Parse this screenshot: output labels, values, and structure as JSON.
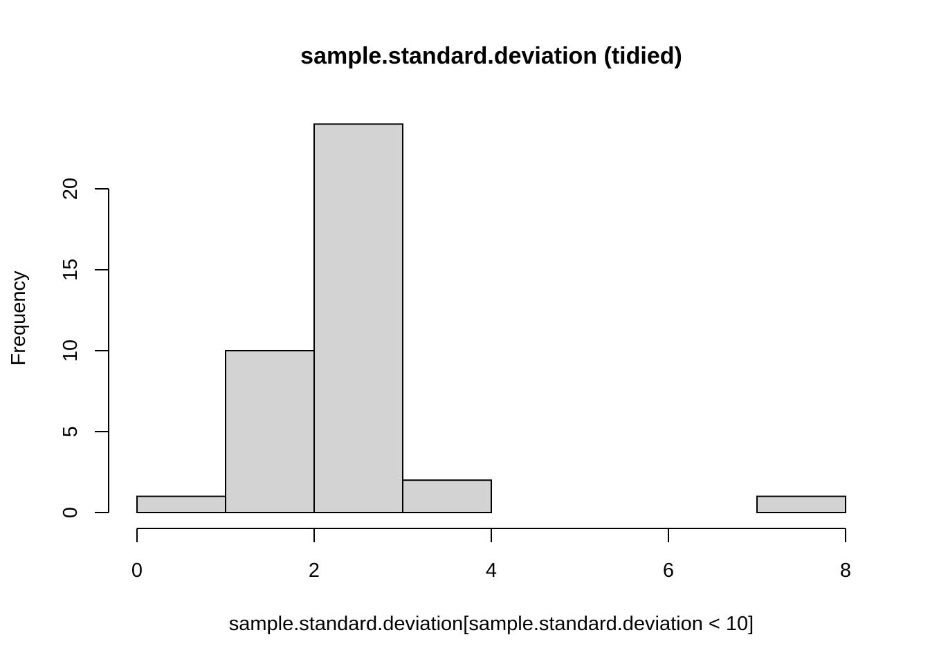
{
  "chart_data": {
    "type": "bar",
    "title": "sample.standard.deviation (tidied)",
    "xlabel": "sample.standard.deviation[sample.standard.deviation < 10]",
    "ylabel": "Frequency",
    "bins": [
      {
        "from": 0,
        "to": 1,
        "count": 1
      },
      {
        "from": 1,
        "to": 2,
        "count": 10
      },
      {
        "from": 2,
        "to": 3,
        "count": 24
      },
      {
        "from": 3,
        "to": 4,
        "count": 2
      },
      {
        "from": 4,
        "to": 5,
        "count": 0
      },
      {
        "from": 5,
        "to": 6,
        "count": 0
      },
      {
        "from": 6,
        "to": 7,
        "count": 0
      },
      {
        "from": 7,
        "to": 8,
        "count": 1
      }
    ],
    "xlim": [
      0,
      8
    ],
    "ylim": [
      0,
      24
    ],
    "x_ticks": [
      0,
      2,
      4,
      6,
      8
    ],
    "y_ticks": [
      0,
      5,
      10,
      15,
      20
    ],
    "bar_color": "#d3d3d3",
    "grid": false,
    "legend": "none"
  }
}
